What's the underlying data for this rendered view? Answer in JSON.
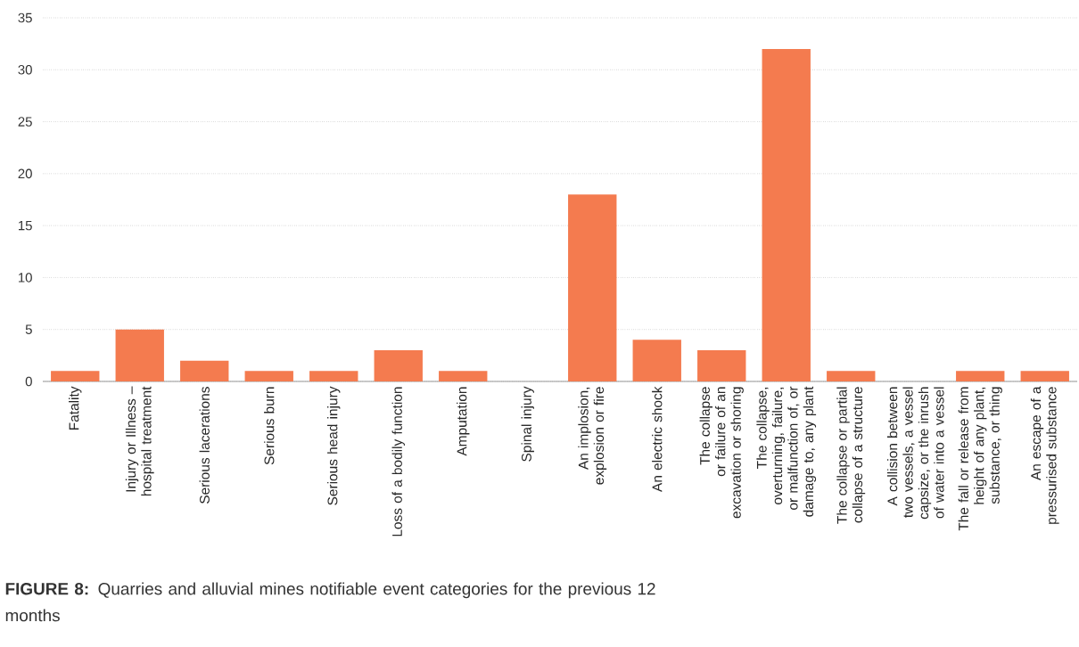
{
  "chart_data": {
    "type": "bar",
    "title": "**FIGURE 8:** Quarries and alluvial mines notifiable event categories for the previous 12 months",
    "categories": [
      "Fatality",
      "Injury or Illness – hospital treatment",
      "Serious lacerations",
      "Serious burn",
      "Serious head injury",
      "Loss of a bodily function",
      "Amputation",
      "Spinal injury",
      "An implosion, explosion or fire",
      "An electric shock",
      "The collapse or failure of an excavation or shoring",
      "The collapse, overturning, failure, or malfunction of, or damage to, any plant",
      "The collapse or partial collapse of a structure",
      "A collision between two vessels, a vessel capsize, or the inrush of water into a vessel",
      "The fall or release from height of any plant, substance, or thing",
      "An escape of a pressurised substance"
    ],
    "values": [
      1,
      5,
      2,
      1,
      1,
      3,
      1,
      0,
      18,
      4,
      3,
      32,
      1,
      0,
      1,
      1
    ],
    "color": "#f47b4f",
    "ylim": [
      0,
      35
    ],
    "yticks": [
      0,
      5,
      10,
      15,
      20,
      25,
      30,
      35
    ],
    "grid": "y"
  }
}
